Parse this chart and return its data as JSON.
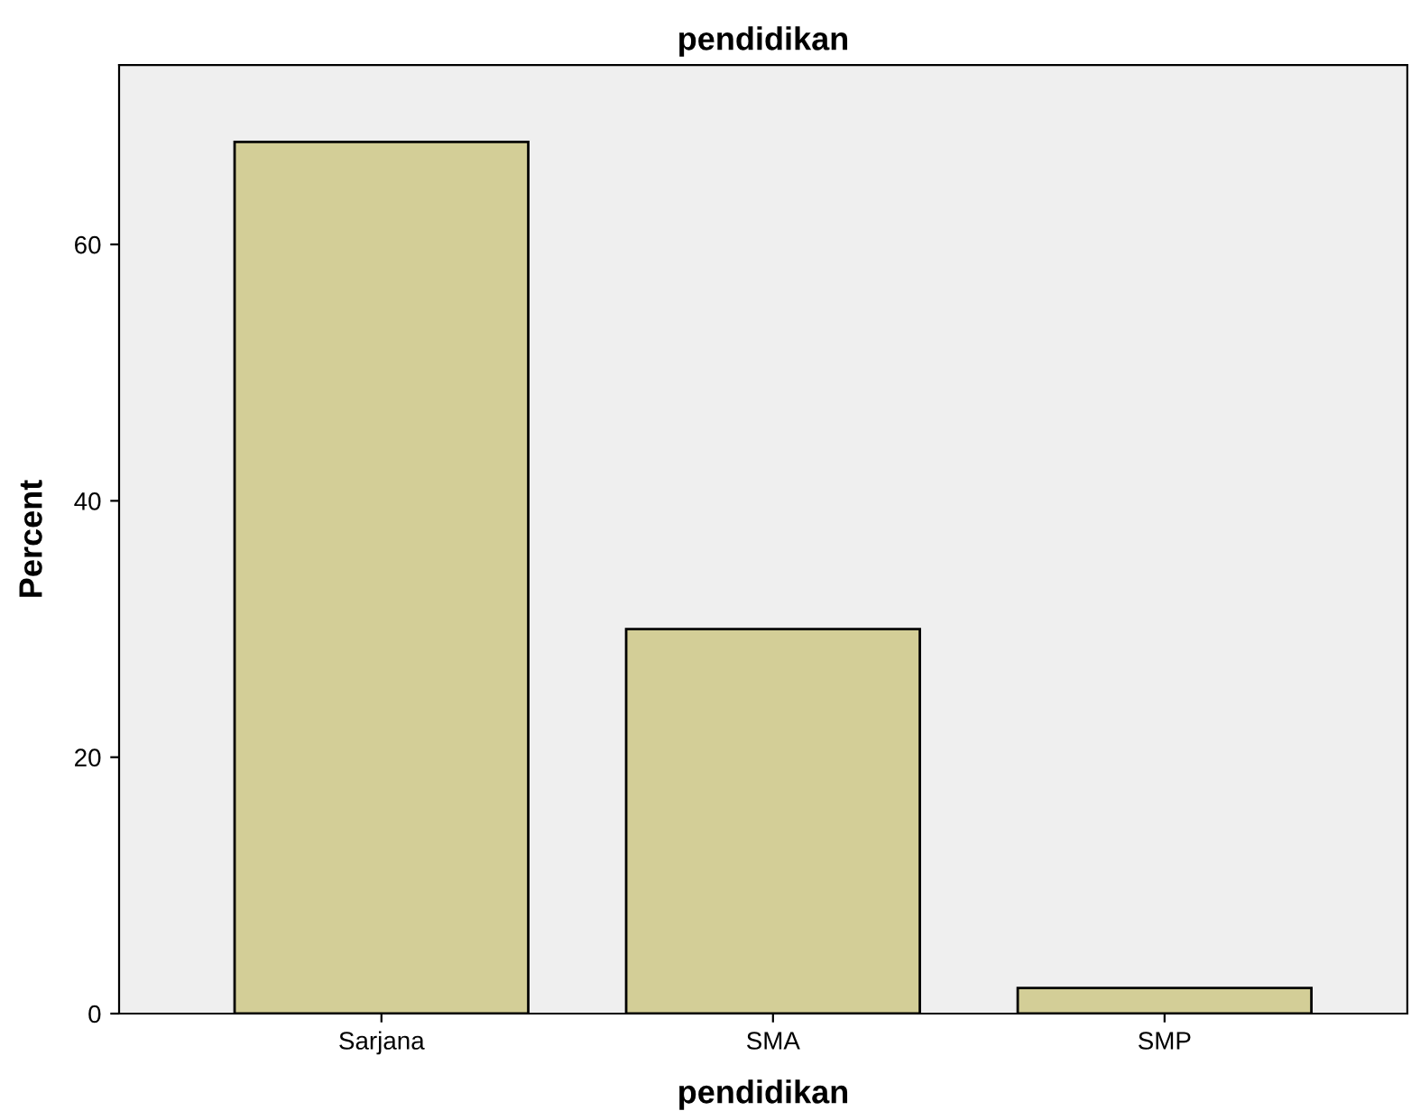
{
  "chart_data": {
    "type": "bar",
    "title": "pendidikan",
    "xlabel": "pendidikan",
    "ylabel": "Percent",
    "categories": [
      "Sarjana",
      "SMA",
      "SMP"
    ],
    "values": [
      68,
      30,
      2
    ],
    "color": "#d3ce97",
    "ylim": [
      0,
      74
    ],
    "yticks": [
      0,
      20,
      40,
      60
    ],
    "grid": false
  }
}
